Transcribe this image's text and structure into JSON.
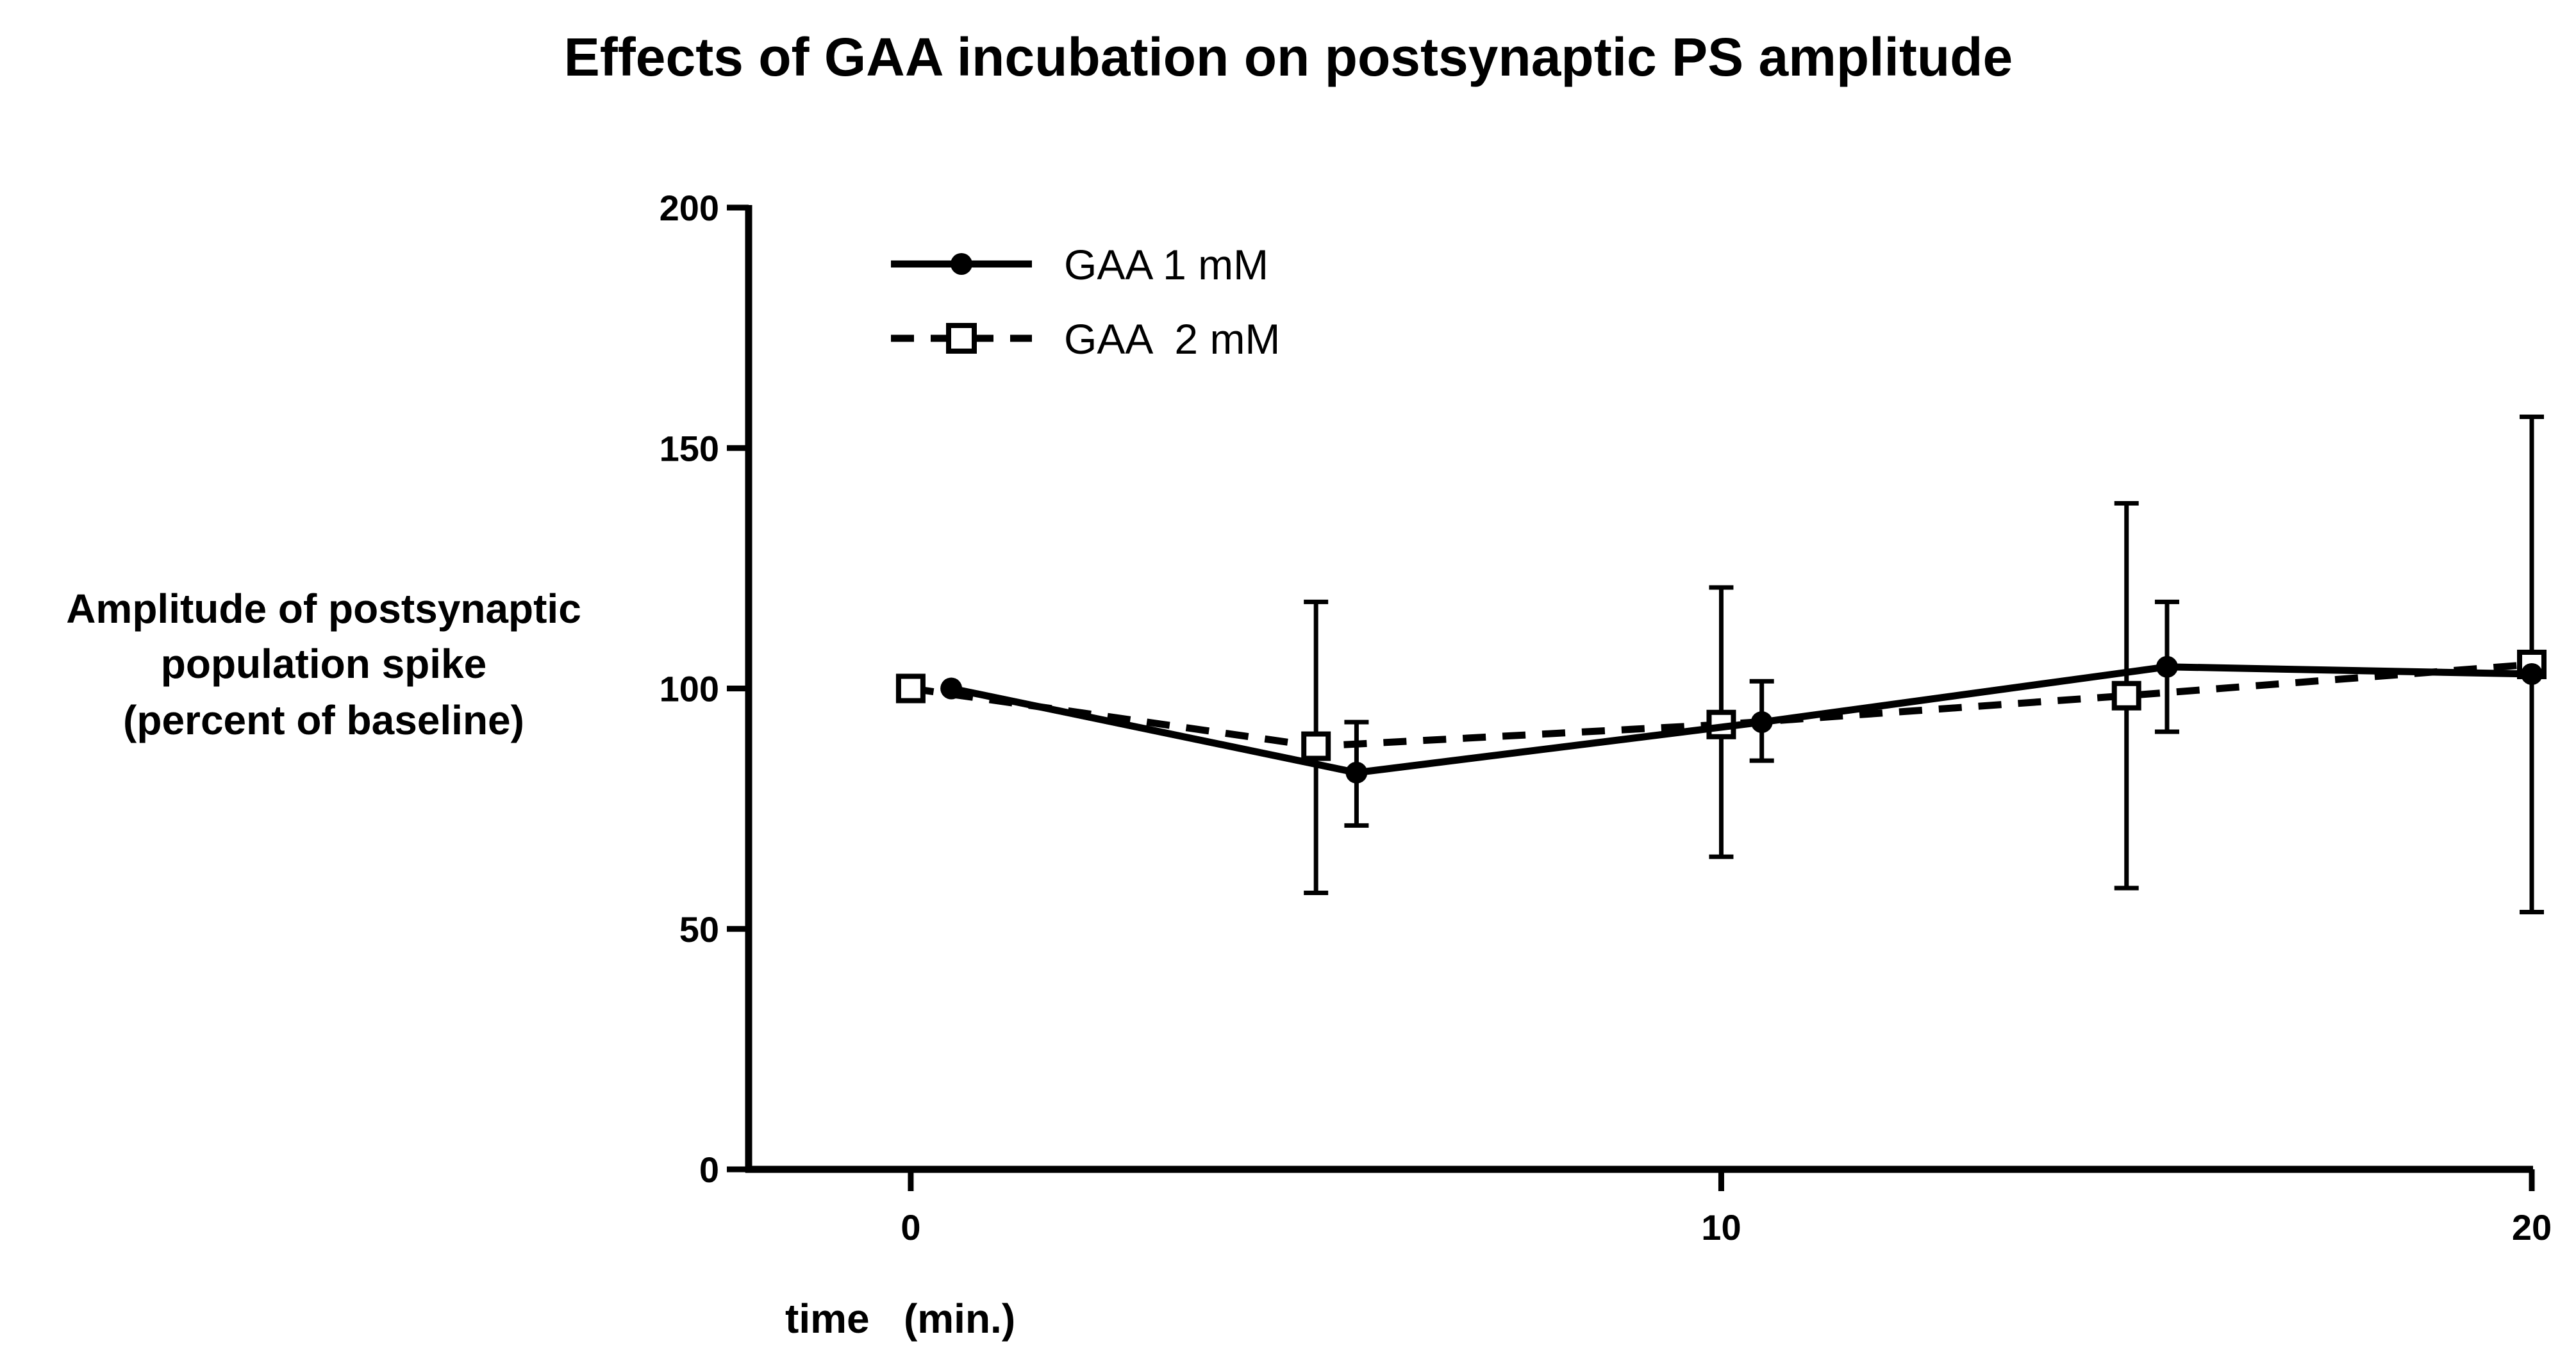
{
  "chart_data": {
    "type": "line",
    "title": "Effects of GAA incubation on postsynaptic PS amplitude",
    "ylabel": [
      "Amplitude of postsynaptic",
      "population spike",
      "(percent of baseline)"
    ],
    "xlabel": "time   (min.)",
    "xlim": [
      -2,
      20
    ],
    "ylim": [
      0,
      200
    ],
    "xticks": [
      0,
      10,
      20
    ],
    "yticks": [
      0,
      50,
      100,
      150,
      200
    ],
    "legend_position": "top-left",
    "series": [
      {
        "name": "GAA 1 mM",
        "style": "solid",
        "marker": "filled-circle",
        "color": "#000000",
        "x": [
          0.5,
          5.5,
          10.5,
          15.5,
          20
        ],
        "y": [
          100,
          82.5,
          93,
          104.5,
          103
        ],
        "err_low": [
          100,
          71.5,
          85,
          91,
          103
        ],
        "err_high": [
          100,
          93,
          101.5,
          118,
          103
        ]
      },
      {
        "name": "GAA  2 mM",
        "style": "dashed",
        "marker": "open-square",
        "color": "#000000",
        "x": [
          0,
          5,
          10,
          15,
          20
        ],
        "y": [
          100,
          88,
          92.5,
          98.5,
          105
        ],
        "err_low": [
          100,
          57.5,
          65,
          58.5,
          53.5
        ],
        "err_high": [
          100,
          118,
          121,
          138.5,
          156.5
        ]
      }
    ]
  }
}
